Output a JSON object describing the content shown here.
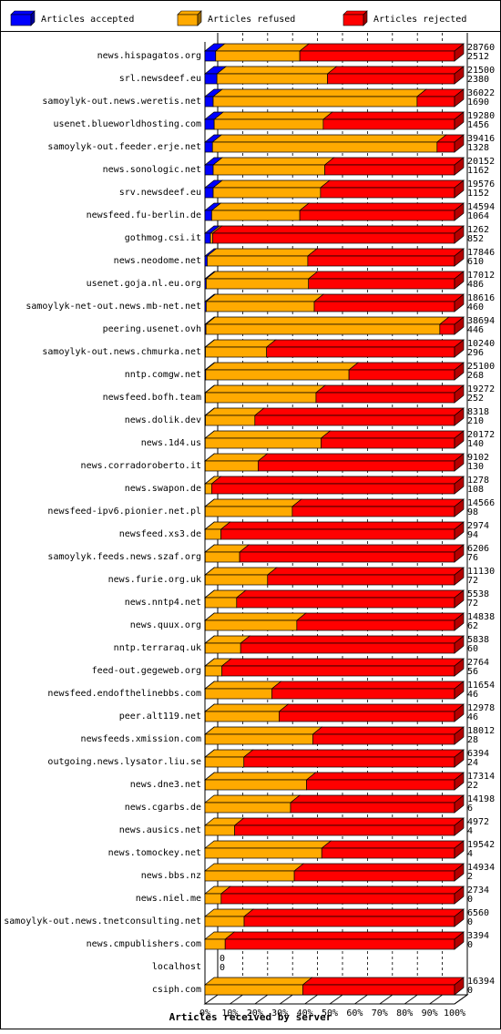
{
  "chart_data": {
    "type": "bar",
    "orientation": "horizontal",
    "stacked": true,
    "title": "",
    "xlabel": "Articles received by server",
    "ylabel": "",
    "xlim": [
      0,
      100
    ],
    "x_unit": "%",
    "x_ticks": [
      "0%",
      "10%",
      "20%",
      "30%",
      "40%",
      "50%",
      "60%",
      "70%",
      "80%",
      "90%",
      "100%"
    ],
    "grid": true,
    "legend_position": "top",
    "series": [
      {
        "name": "Articles accepted",
        "color": "#0000ff"
      },
      {
        "name": "Articles refused",
        "color": "#ffaa00"
      },
      {
        "name": "Articles rejected",
        "color": "#ff0000"
      }
    ],
    "categories": [
      "news.hispagatos.org",
      "srl.newsdeef.eu",
      "samoylyk-out.news.weretis.net",
      "usenet.blueworldhosting.com",
      "samoylyk-out.feeder.erje.net",
      "news.sonologic.net",
      "srv.newsdeef.eu",
      "newsfeed.fu-berlin.de",
      "gothmog.csi.it",
      "news.neodome.net",
      "usenet.goja.nl.eu.org",
      "samoylyk-net-out.news.mb-net.net",
      "peering.usenet.ovh",
      "samoylyk-out.news.chmurka.net",
      "nntp.comgw.net",
      "newsfeed.bofh.team",
      "news.dolik.dev",
      "news.1d4.us",
      "news.corradoroberto.it",
      "news.swapon.de",
      "newsfeed-ipv6.pionier.net.pl",
      "newsfeed.xs3.de",
      "samoylyk.feeds.news.szaf.org",
      "news.furie.org.uk",
      "news.nntp4.net",
      "news.quux.org",
      "nntp.terraraq.uk",
      "feed-out.gegeweb.org",
      "newsfeed.endofthelinebbs.com",
      "peer.alt119.net",
      "newsfeeds.xmission.com",
      "outgoing.news.lysator.liu.se",
      "news.dne3.net",
      "news.cgarbs.de",
      "news.ausics.net",
      "news.tomockey.net",
      "news.bbs.nz",
      "news.niel.me",
      "samoylyk-out.news.tnetconsulting.net",
      "news.cmpublishers.com",
      "localhost",
      "csiph.com"
    ],
    "totals": [
      28760,
      21500,
      36022,
      19280,
      39416,
      20152,
      19576,
      14594,
      1262,
      17846,
      17012,
      18616,
      38694,
      10240,
      25100,
      19272,
      8318,
      20172,
      9102,
      1278,
      14566,
      2974,
      6206,
      11130,
      5538,
      14838,
      5838,
      2764,
      11654,
      12978,
      18012,
      6394,
      17314,
      14198,
      4972,
      19542,
      14934,
      2734,
      6560,
      3394,
      0,
      16394
    ],
    "accepted": [
      2512,
      2380,
      1690,
      1456,
      1328,
      1162,
      1152,
      1064,
      852,
      610,
      486,
      460,
      446,
      296,
      268,
      252,
      210,
      140,
      130,
      108,
      98,
      94,
      76,
      72,
      72,
      62,
      60,
      56,
      46,
      46,
      28,
      24,
      22,
      6,
      4,
      4,
      2,
      0,
      0,
      0,
      0,
      0
    ],
    "accepted_pct": [
      4.3,
      4.8,
      3.3,
      3.7,
      3.0,
      3.3,
      3.3,
      2.7,
      2.2,
      0.9,
      0.5,
      0.5,
      0.4,
      0.2,
      0.3,
      0.2,
      0.2,
      0.1,
      0.1,
      0.1,
      0.1,
      0.1,
      0.1,
      0.1,
      0.1,
      0.1,
      0.1,
      0.1,
      0.1,
      0.1,
      0.1,
      0.1,
      0.1,
      0,
      0,
      0,
      0,
      0,
      0,
      0,
      0,
      0
    ],
    "refused_pct": [
      33.7,
      44.3,
      81.7,
      43.7,
      90.0,
      44.7,
      43.0,
      35.3,
      0.9,
      40.3,
      41.0,
      43.3,
      93.7,
      24.5,
      57.4,
      44.3,
      19.8,
      46.4,
      21.2,
      2.6,
      34.9,
      6.3,
      13.8,
      25.0,
      12.6,
      36.7,
      14.2,
      6.7,
      26.7,
      29.6,
      43.1,
      15.5,
      40.6,
      34.3,
      11.9,
      46.8,
      35.8,
      6.5,
      15.7,
      8.1,
      0,
      39.2
    ]
  }
}
